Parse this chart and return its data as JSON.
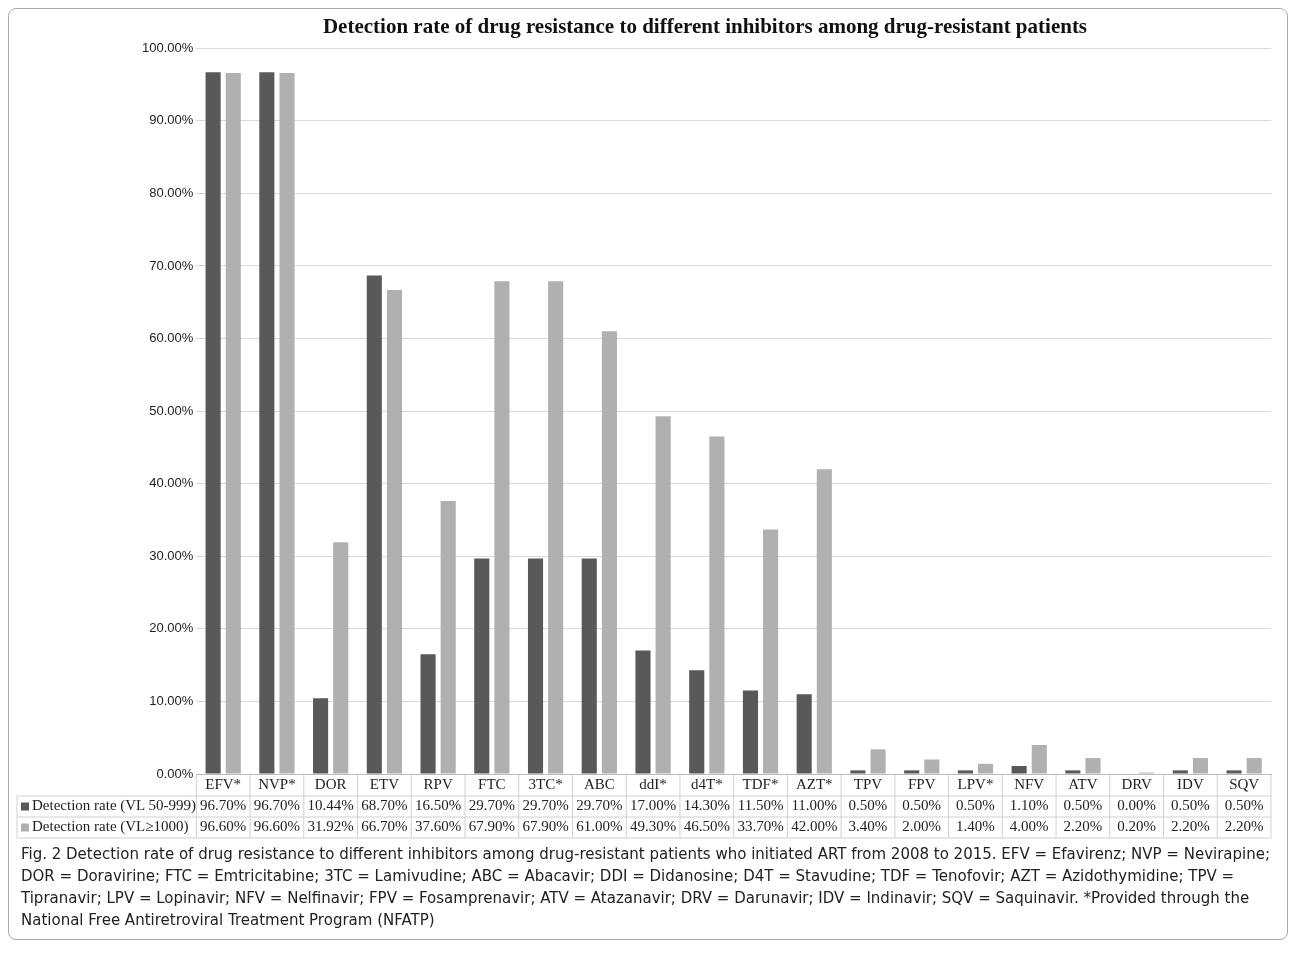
{
  "chart_data": {
    "type": "bar",
    "title": "Detection rate of drug resistance to different inhibitors among drug-resistant patients",
    "categories": [
      "EFV*",
      "NVP*",
      "DOR",
      "ETV",
      "RPV",
      "FTC",
      "3TC*",
      "ABC",
      "ddI*",
      "d4T*",
      "TDF*",
      "AZT*",
      "TPV",
      "FPV",
      "LPV*",
      "NFV",
      "ATV",
      "DRV",
      "IDV",
      "SQV"
    ],
    "series": [
      {
        "name": "Detection rate (VL 50-999)",
        "color": "#595959",
        "values": [
          96.7,
          96.7,
          10.44,
          68.7,
          16.5,
          29.7,
          29.7,
          29.7,
          17.0,
          14.3,
          11.5,
          11.0,
          0.5,
          0.5,
          0.5,
          1.1,
          0.5,
          0.0,
          0.5,
          0.5
        ],
        "value_labels": [
          "96.70%",
          "96.70%",
          "10.44%",
          "68.70%",
          "16.50%",
          "29.70%",
          "29.70%",
          "29.70%",
          "17.00%",
          "14.30%",
          "11.50%",
          "11.00%",
          "0.50%",
          "0.50%",
          "0.50%",
          "1.10%",
          "0.50%",
          "0.00%",
          "0.50%",
          "0.50%"
        ]
      },
      {
        "name": "Detection rate (VL≥1000)",
        "color": "#b0b0b0",
        "values": [
          96.6,
          96.6,
          31.92,
          66.7,
          37.6,
          67.9,
          67.9,
          61.0,
          49.3,
          46.5,
          33.7,
          42.0,
          3.4,
          2.0,
          1.4,
          4.0,
          2.2,
          0.2,
          2.2,
          2.2
        ],
        "value_labels": [
          "96.60%",
          "96.60%",
          "31.92%",
          "66.70%",
          "37.60%",
          "67.90%",
          "67.90%",
          "61.00%",
          "49.30%",
          "46.50%",
          "33.70%",
          "42.00%",
          "3.40%",
          "2.00%",
          "1.40%",
          "4.00%",
          "2.20%",
          "0.20%",
          "2.20%",
          "2.20%"
        ]
      }
    ],
    "ylim": [
      0,
      100
    ],
    "yticks": [
      {
        "value": 0,
        "label": "0.00%"
      },
      {
        "value": 10,
        "label": "10.00%"
      },
      {
        "value": 20,
        "label": "20.00%"
      },
      {
        "value": 30,
        "label": "30.00%"
      },
      {
        "value": 40,
        "label": "40.00%"
      },
      {
        "value": 50,
        "label": "50.00%"
      },
      {
        "value": 60,
        "label": "60.00%"
      },
      {
        "value": 70,
        "label": "70.00%"
      },
      {
        "value": 80,
        "label": "80.00%"
      },
      {
        "value": 90,
        "label": "90.00%"
      },
      {
        "value": 100,
        "label": "100.00%"
      }
    ],
    "grid": "y",
    "legend": "bottom",
    "annotations": [
      "Fig. 2  Detection rate of drug resistance to different inhibitors among drug-resistant patients who initiated ART from 2008 to 2015. EFV = Efavirenz; NVP = Nevirapine; DOR = Doravirine; FTC = Emtricitabine; 3TC = Lamivudine; ABC = Abacavir; DDI = Didanosine; D4T = Stavudine; TDF = Tenofovir; AZT = Azidothymidine; TPV = Tipranavir; LPV = Lopinavir; NFV = Nelfinavir; FPV = Fosamprenavir; ATV = Atazanavir; DRV = Darunavir; IDV = Indinavir; SQV = Saquinavir. *Provided through the National Free Antiretroviral Treatment Program (NFATP)"
    ]
  }
}
